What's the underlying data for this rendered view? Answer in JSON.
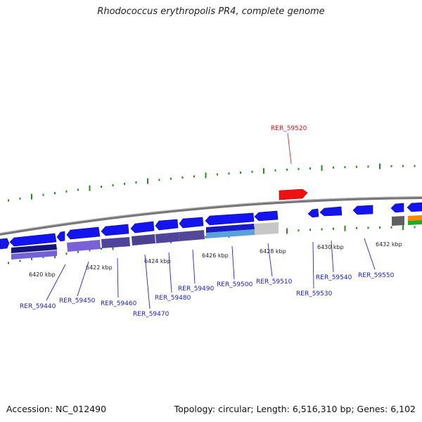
{
  "title": "Rhodococcus erythropolis PR4, complete genome",
  "footer": {
    "accession": "Accession: NC_012490",
    "summary": "Topology: circular; Length: 6,516,310 bp; Genes: 6,102"
  },
  "colors": {
    "forward_gene": "#1111ee",
    "highlight_gene": "#ee0000",
    "dark_navy": "#15157a",
    "violet": "#7a62d6",
    "slate_violet": "#4f449a",
    "light_blue": "#5aa0dc",
    "gray": "#c0c0c0",
    "tick_green": "#2a8a2a",
    "backbone": "#888888",
    "orange": "#ff8800",
    "green": "#22aa22"
  },
  "kbp_labels": [
    "6420 kbp",
    "6422 kbp",
    "6424 kbp",
    "6426 kbp",
    "6428 kbp",
    "6430 kbp",
    "6432 kbp"
  ],
  "genes": [
    {
      "id": "RER_59440",
      "color": "blue"
    },
    {
      "id": "RER_59450",
      "color": "blue"
    },
    {
      "id": "RER_59460",
      "color": "blue"
    },
    {
      "id": "RER_59470",
      "color": "blue"
    },
    {
      "id": "RER_59480",
      "color": "blue"
    },
    {
      "id": "RER_59490",
      "color": "blue"
    },
    {
      "id": "RER_59500",
      "color": "blue"
    },
    {
      "id": "RER_59510",
      "color": "blue"
    },
    {
      "id": "RER_59520",
      "color": "red"
    },
    {
      "id": "RER_59530",
      "color": "blue"
    },
    {
      "id": "RER_59540",
      "color": "blue"
    },
    {
      "id": "RER_59550",
      "color": "blue"
    }
  ]
}
